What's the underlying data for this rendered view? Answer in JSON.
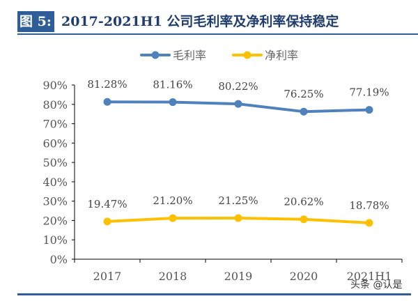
{
  "title": {
    "label": "图 5:",
    "text": "2017-2021H1 公司毛利率及净利率保持稳定"
  },
  "watermark": "头条 @认是",
  "chart_data": {
    "type": "line",
    "title": "2017-2021H1 公司毛利率及净利率保持稳定",
    "categories": [
      "2017",
      "2018",
      "2019",
      "2020",
      "2021H1"
    ],
    "series": [
      {
        "name": "毛利率",
        "values": [
          81.28,
          81.16,
          80.22,
          76.25,
          77.19
        ],
        "labels": [
          "81.28%",
          "81.16%",
          "80.22%",
          "76.25%",
          "77.19%"
        ],
        "color": "#4f81bd"
      },
      {
        "name": "净利率",
        "values": [
          19.47,
          21.2,
          21.25,
          20.62,
          18.78
        ],
        "labels": [
          "19.47%",
          "21.20%",
          "21.25%",
          "20.62%",
          "18.78%"
        ],
        "color": "#ffc000"
      }
    ],
    "ylim": [
      0,
      90
    ],
    "yticks": [
      "0%",
      "10%",
      "20%",
      "30%",
      "40%",
      "50%",
      "60%",
      "70%",
      "80%",
      "90%"
    ],
    "grid": false,
    "legend": "top"
  }
}
